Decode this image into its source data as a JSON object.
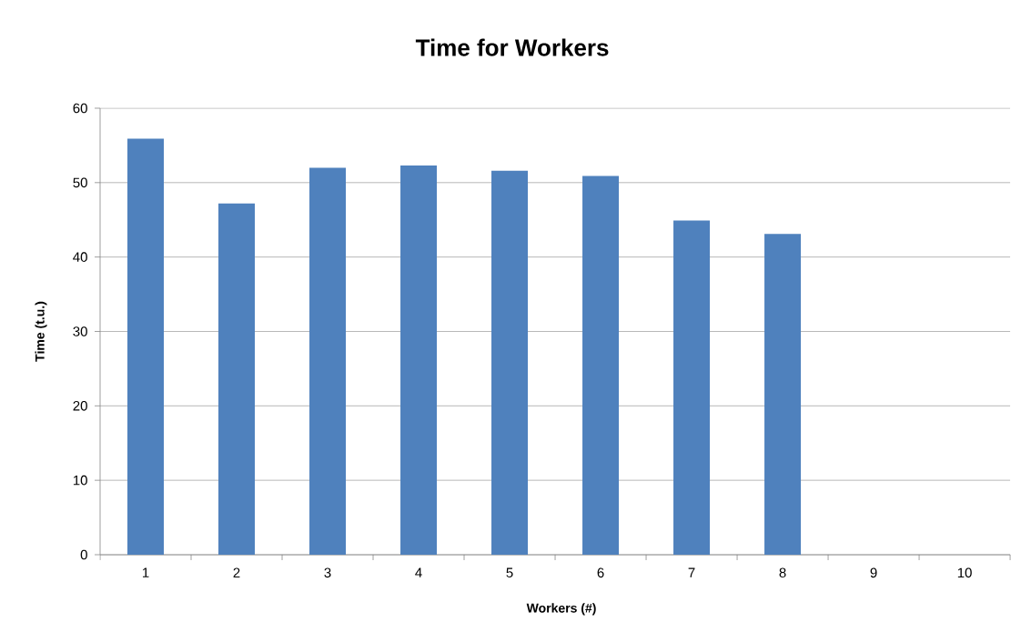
{
  "chart_data": {
    "type": "bar",
    "title": "Time for Workers",
    "xlabel": "Workers (#)",
    "ylabel": "Time (t.u.)",
    "categories": [
      "1",
      "2",
      "3",
      "4",
      "5",
      "6",
      "7",
      "8",
      "9",
      "10"
    ],
    "values": [
      55.9,
      47.2,
      52.0,
      52.3,
      51.6,
      50.9,
      44.9,
      43.1,
      null,
      null
    ],
    "color": "#4f81bd",
    "ylim": [
      0,
      60
    ],
    "yticks": [
      0,
      10,
      20,
      30,
      40,
      50,
      60
    ],
    "grid": "y"
  }
}
